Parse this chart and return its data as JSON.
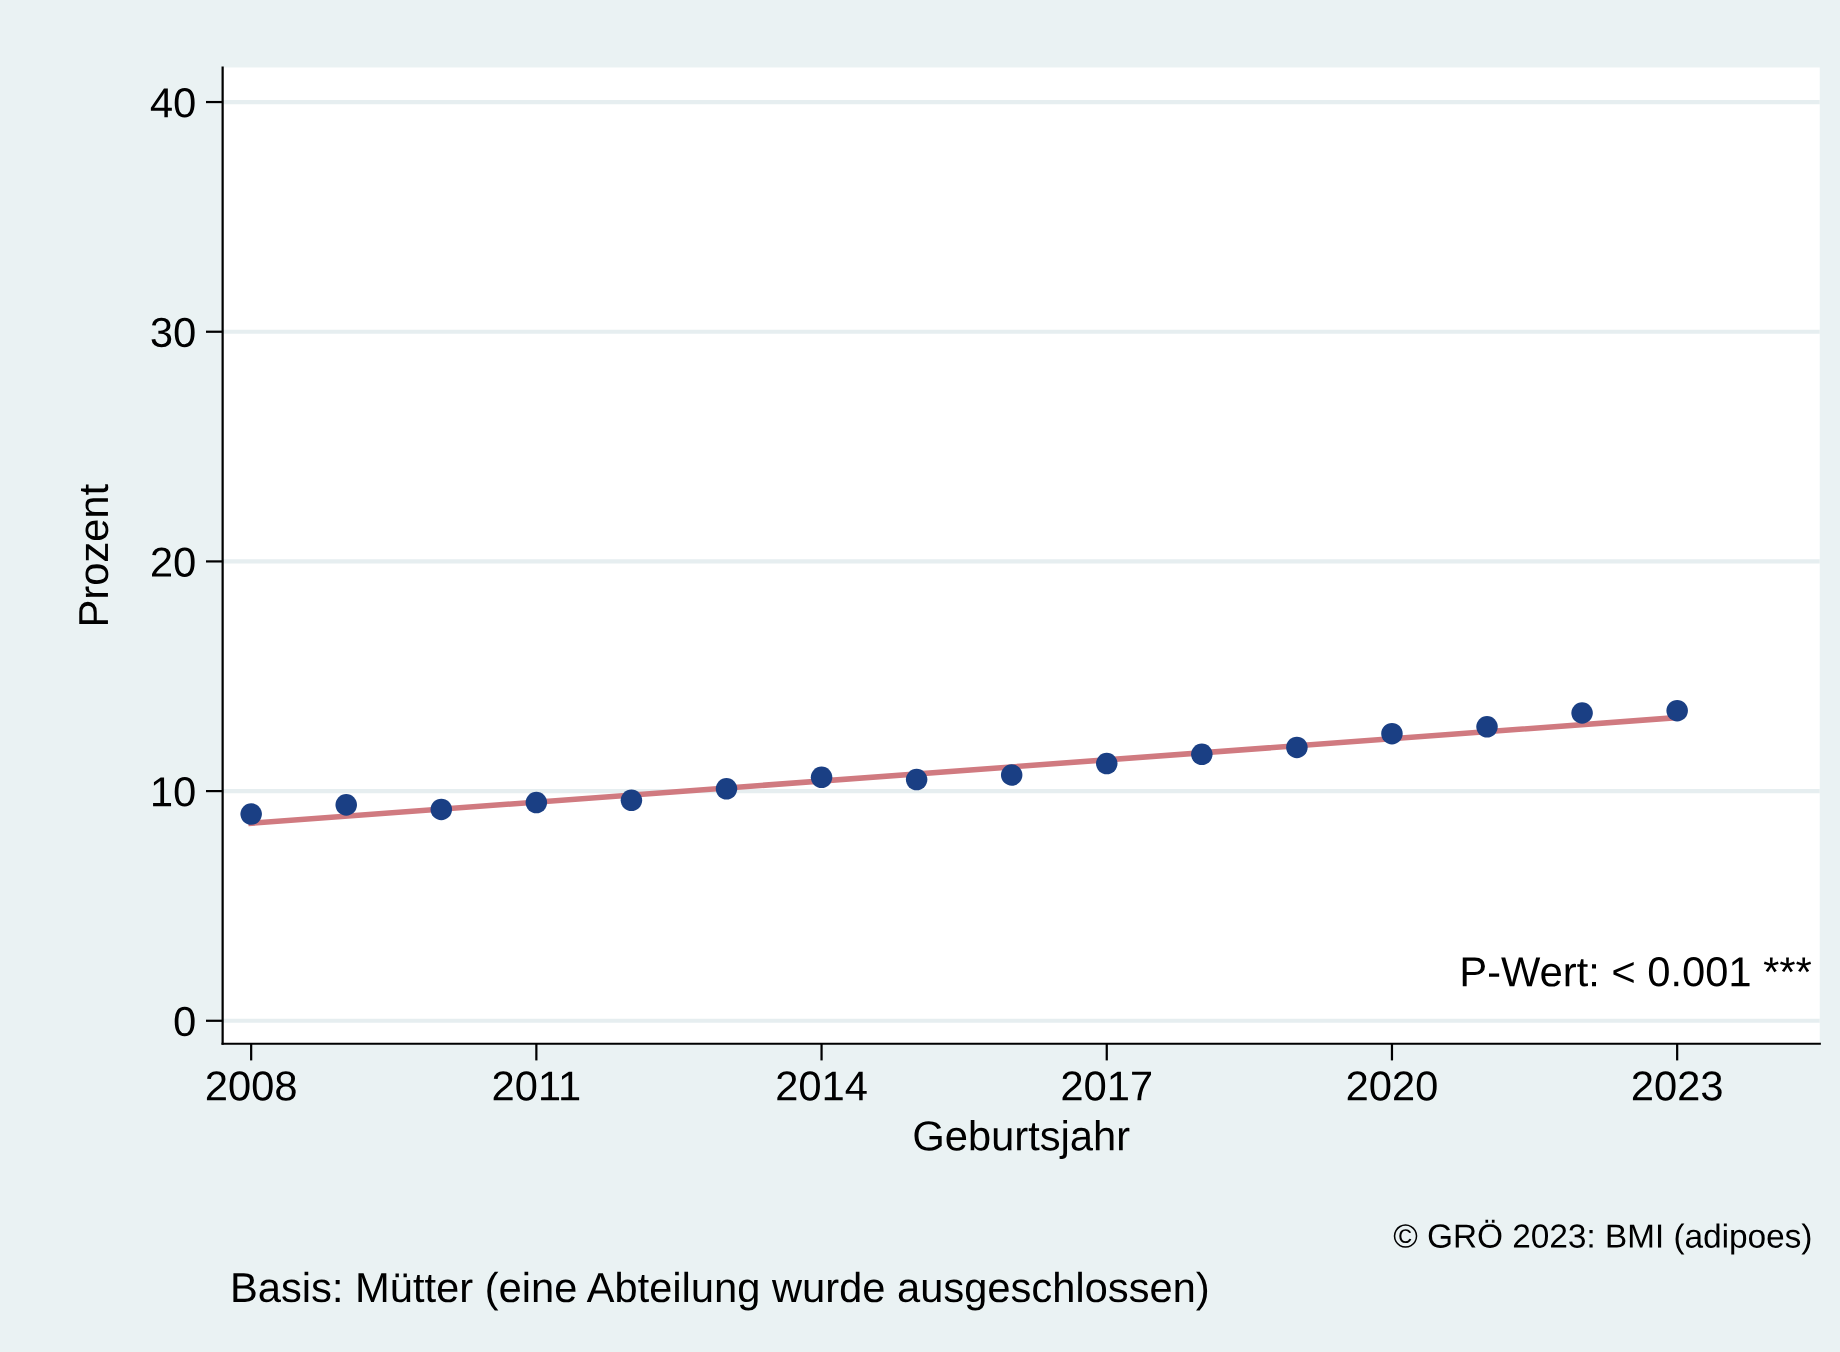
{
  "chart_data": {
    "type": "scatter",
    "xlabel": "Geburtsjahr",
    "ylabel": "Prozent",
    "x": [
      2008,
      2009,
      2010,
      2011,
      2012,
      2013,
      2014,
      2015,
      2016,
      2017,
      2018,
      2019,
      2020,
      2021,
      2022,
      2023
    ],
    "series": [
      {
        "color": "#1a3f84",
        "marker": "circle",
        "values": [
          9.0,
          9.4,
          9.2,
          9.5,
          9.6,
          10.1,
          10.6,
          10.5,
          10.7,
          11.2,
          11.6,
          11.9,
          12.5,
          12.8,
          13.4,
          13.5
        ]
      },
      {
        "type": "line",
        "color": "#d07a80",
        "x": [
          2008,
          2023
        ],
        "values": [
          8.6,
          13.2
        ],
        "line_style": "solid"
      }
    ],
    "xlim": [
      2007.7,
      2024.5
    ],
    "ylim": [
      -1,
      41.5
    ],
    "xticks": [
      2008,
      2011,
      2014,
      2017,
      2020,
      2023
    ],
    "yticks": [
      0,
      10,
      20,
      30,
      40
    ],
    "grid": "y",
    "annotations": [
      "P-Wert: < 0.001 ***",
      "© GRÖ 2023: BMI (adipoes)",
      "Basis: Mütter (eine Abteilung wurde ausgeschlossen)"
    ]
  }
}
